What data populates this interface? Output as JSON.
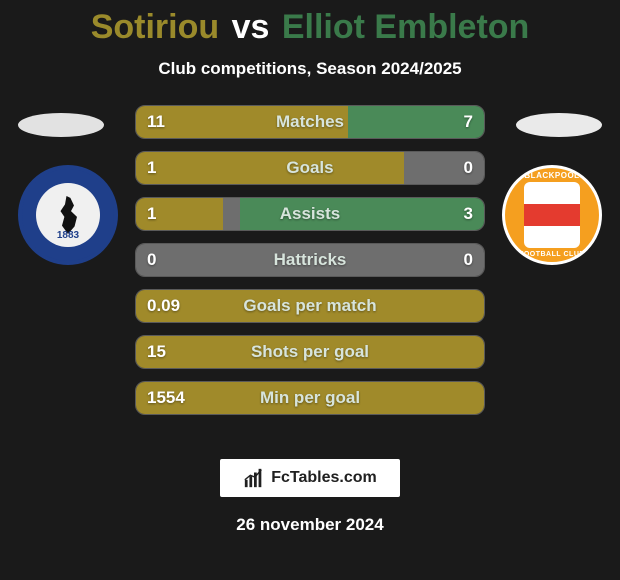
{
  "title": {
    "player1": "Sotiriou",
    "vs": "vs",
    "player2": "Elliot Embleton",
    "color_p1": "#9a8a2b",
    "color_vs": "#ffffff",
    "color_p2": "#3a7a4a"
  },
  "subtitle": "Club competitions, Season 2024/2025",
  "crests": {
    "left_year": "1883",
    "right_top": "BLACKPOOL",
    "right_bottom": "FOOTBALL CLUB"
  },
  "bars": {
    "track_width": 350,
    "track_height": 34,
    "border_radius": 10,
    "color_left": "#a08a2a",
    "color_mid": "#a08a2a",
    "color_mid_neutral": "#6e6e6e",
    "color_right": "#4a8a58",
    "label_color": "#d7e4dc",
    "value_color": "#ffffff",
    "rows": [
      {
        "label": "Matches",
        "left": "11",
        "right": "7",
        "left_pct": 61,
        "right_pct": 39,
        "full_left": false
      },
      {
        "label": "Goals",
        "left": "1",
        "right": "0",
        "left_pct": 77,
        "right_pct": 0,
        "full_left": false
      },
      {
        "label": "Assists",
        "left": "1",
        "right": "3",
        "left_pct": 25,
        "right_pct": 70,
        "full_left": false
      },
      {
        "label": "Hattricks",
        "left": "0",
        "right": "0",
        "left_pct": 0,
        "right_pct": 0,
        "full_left": false
      },
      {
        "label": "Goals per match",
        "left": "0.09",
        "right": "",
        "left_pct": 100,
        "right_pct": 0,
        "full_left": true
      },
      {
        "label": "Shots per goal",
        "left": "15",
        "right": "",
        "left_pct": 100,
        "right_pct": 0,
        "full_left": true
      },
      {
        "label": "Min per goal",
        "left": "1554",
        "right": "",
        "left_pct": 100,
        "right_pct": 0,
        "full_left": true
      }
    ]
  },
  "logo_text": "FcTables.com",
  "footer_date": "26 november 2024"
}
